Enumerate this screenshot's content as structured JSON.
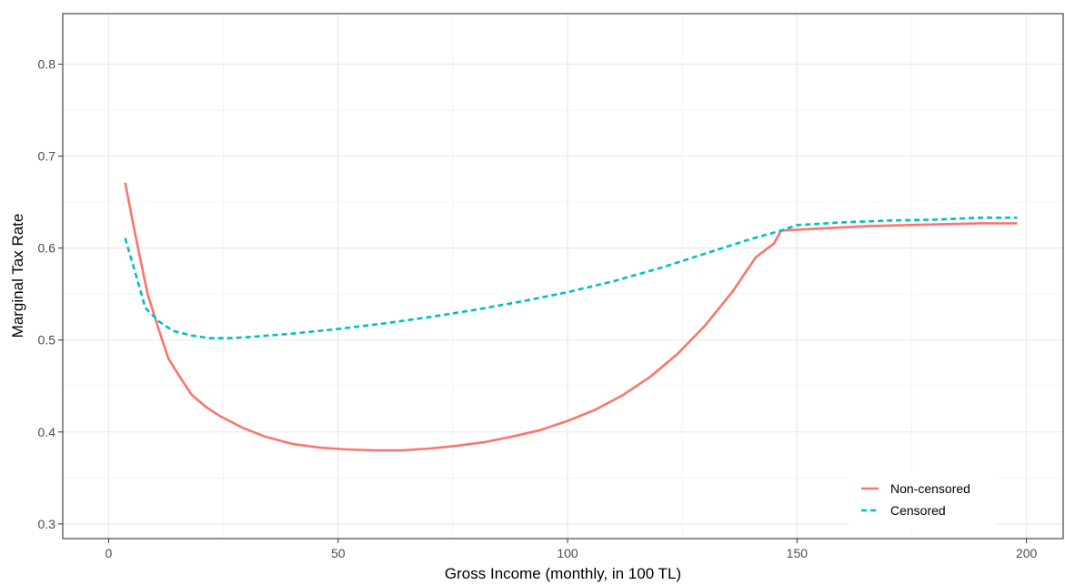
{
  "chart_data": {
    "type": "line",
    "title": "",
    "xlabel": "Gross Income (monthly, in 100 TL)",
    "ylabel": "Marginal Tax Rate",
    "xlim": [
      -10,
      208
    ],
    "ylim": [
      0.284,
      0.855
    ],
    "x_ticks": [
      0,
      50,
      100,
      150,
      200
    ],
    "y_ticks": [
      0.3,
      0.4,
      0.5,
      0.6,
      0.7,
      0.8
    ],
    "x_tick_labels": [
      "0",
      "50",
      "100",
      "150",
      "200"
    ],
    "y_tick_labels": [
      "0.3",
      "0.4",
      "0.5",
      "0.6",
      "0.7",
      "0.8"
    ],
    "grid": true,
    "legend_position": "bottom-right",
    "series": [
      {
        "name": "Non-censored",
        "color": "#F8766D",
        "dash": "solid",
        "x": [
          3.6,
          6,
          8.5,
          11,
          13,
          15.5,
          18,
          21,
          24,
          29,
          34,
          40,
          46,
          52,
          58,
          64,
          70,
          76,
          82,
          88,
          94,
          100,
          106,
          112,
          118,
          124,
          130,
          136,
          141,
          145,
          146.5,
          150,
          158,
          166,
          174,
          182,
          190,
          198
        ],
        "values": [
          0.671,
          0.61,
          0.55,
          0.51,
          0.48,
          0.46,
          0.441,
          0.428,
          0.418,
          0.405,
          0.395,
          0.387,
          0.383,
          0.381,
          0.38,
          0.38,
          0.382,
          0.385,
          0.389,
          0.395,
          0.402,
          0.412,
          0.424,
          0.44,
          0.46,
          0.485,
          0.516,
          0.553,
          0.59,
          0.605,
          0.619,
          0.62,
          0.622,
          0.624,
          0.625,
          0.626,
          0.627,
          0.627
        ]
      },
      {
        "name": "Censored",
        "color": "#00BFC4",
        "dash": "dashed",
        "x": [
          3.6,
          6,
          8,
          11,
          14,
          18,
          22,
          26,
          30,
          40,
          50,
          60,
          70,
          80,
          90,
          100,
          110,
          120,
          130,
          140,
          146.5,
          150,
          160,
          170,
          180,
          190,
          198
        ],
        "values": [
          0.611,
          0.57,
          0.535,
          0.52,
          0.51,
          0.505,
          0.502,
          0.502,
          0.503,
          0.507,
          0.512,
          0.518,
          0.525,
          0.533,
          0.542,
          0.552,
          0.564,
          0.578,
          0.594,
          0.61,
          0.619,
          0.625,
          0.628,
          0.63,
          0.631,
          0.633,
          0.633
        ]
      }
    ]
  }
}
